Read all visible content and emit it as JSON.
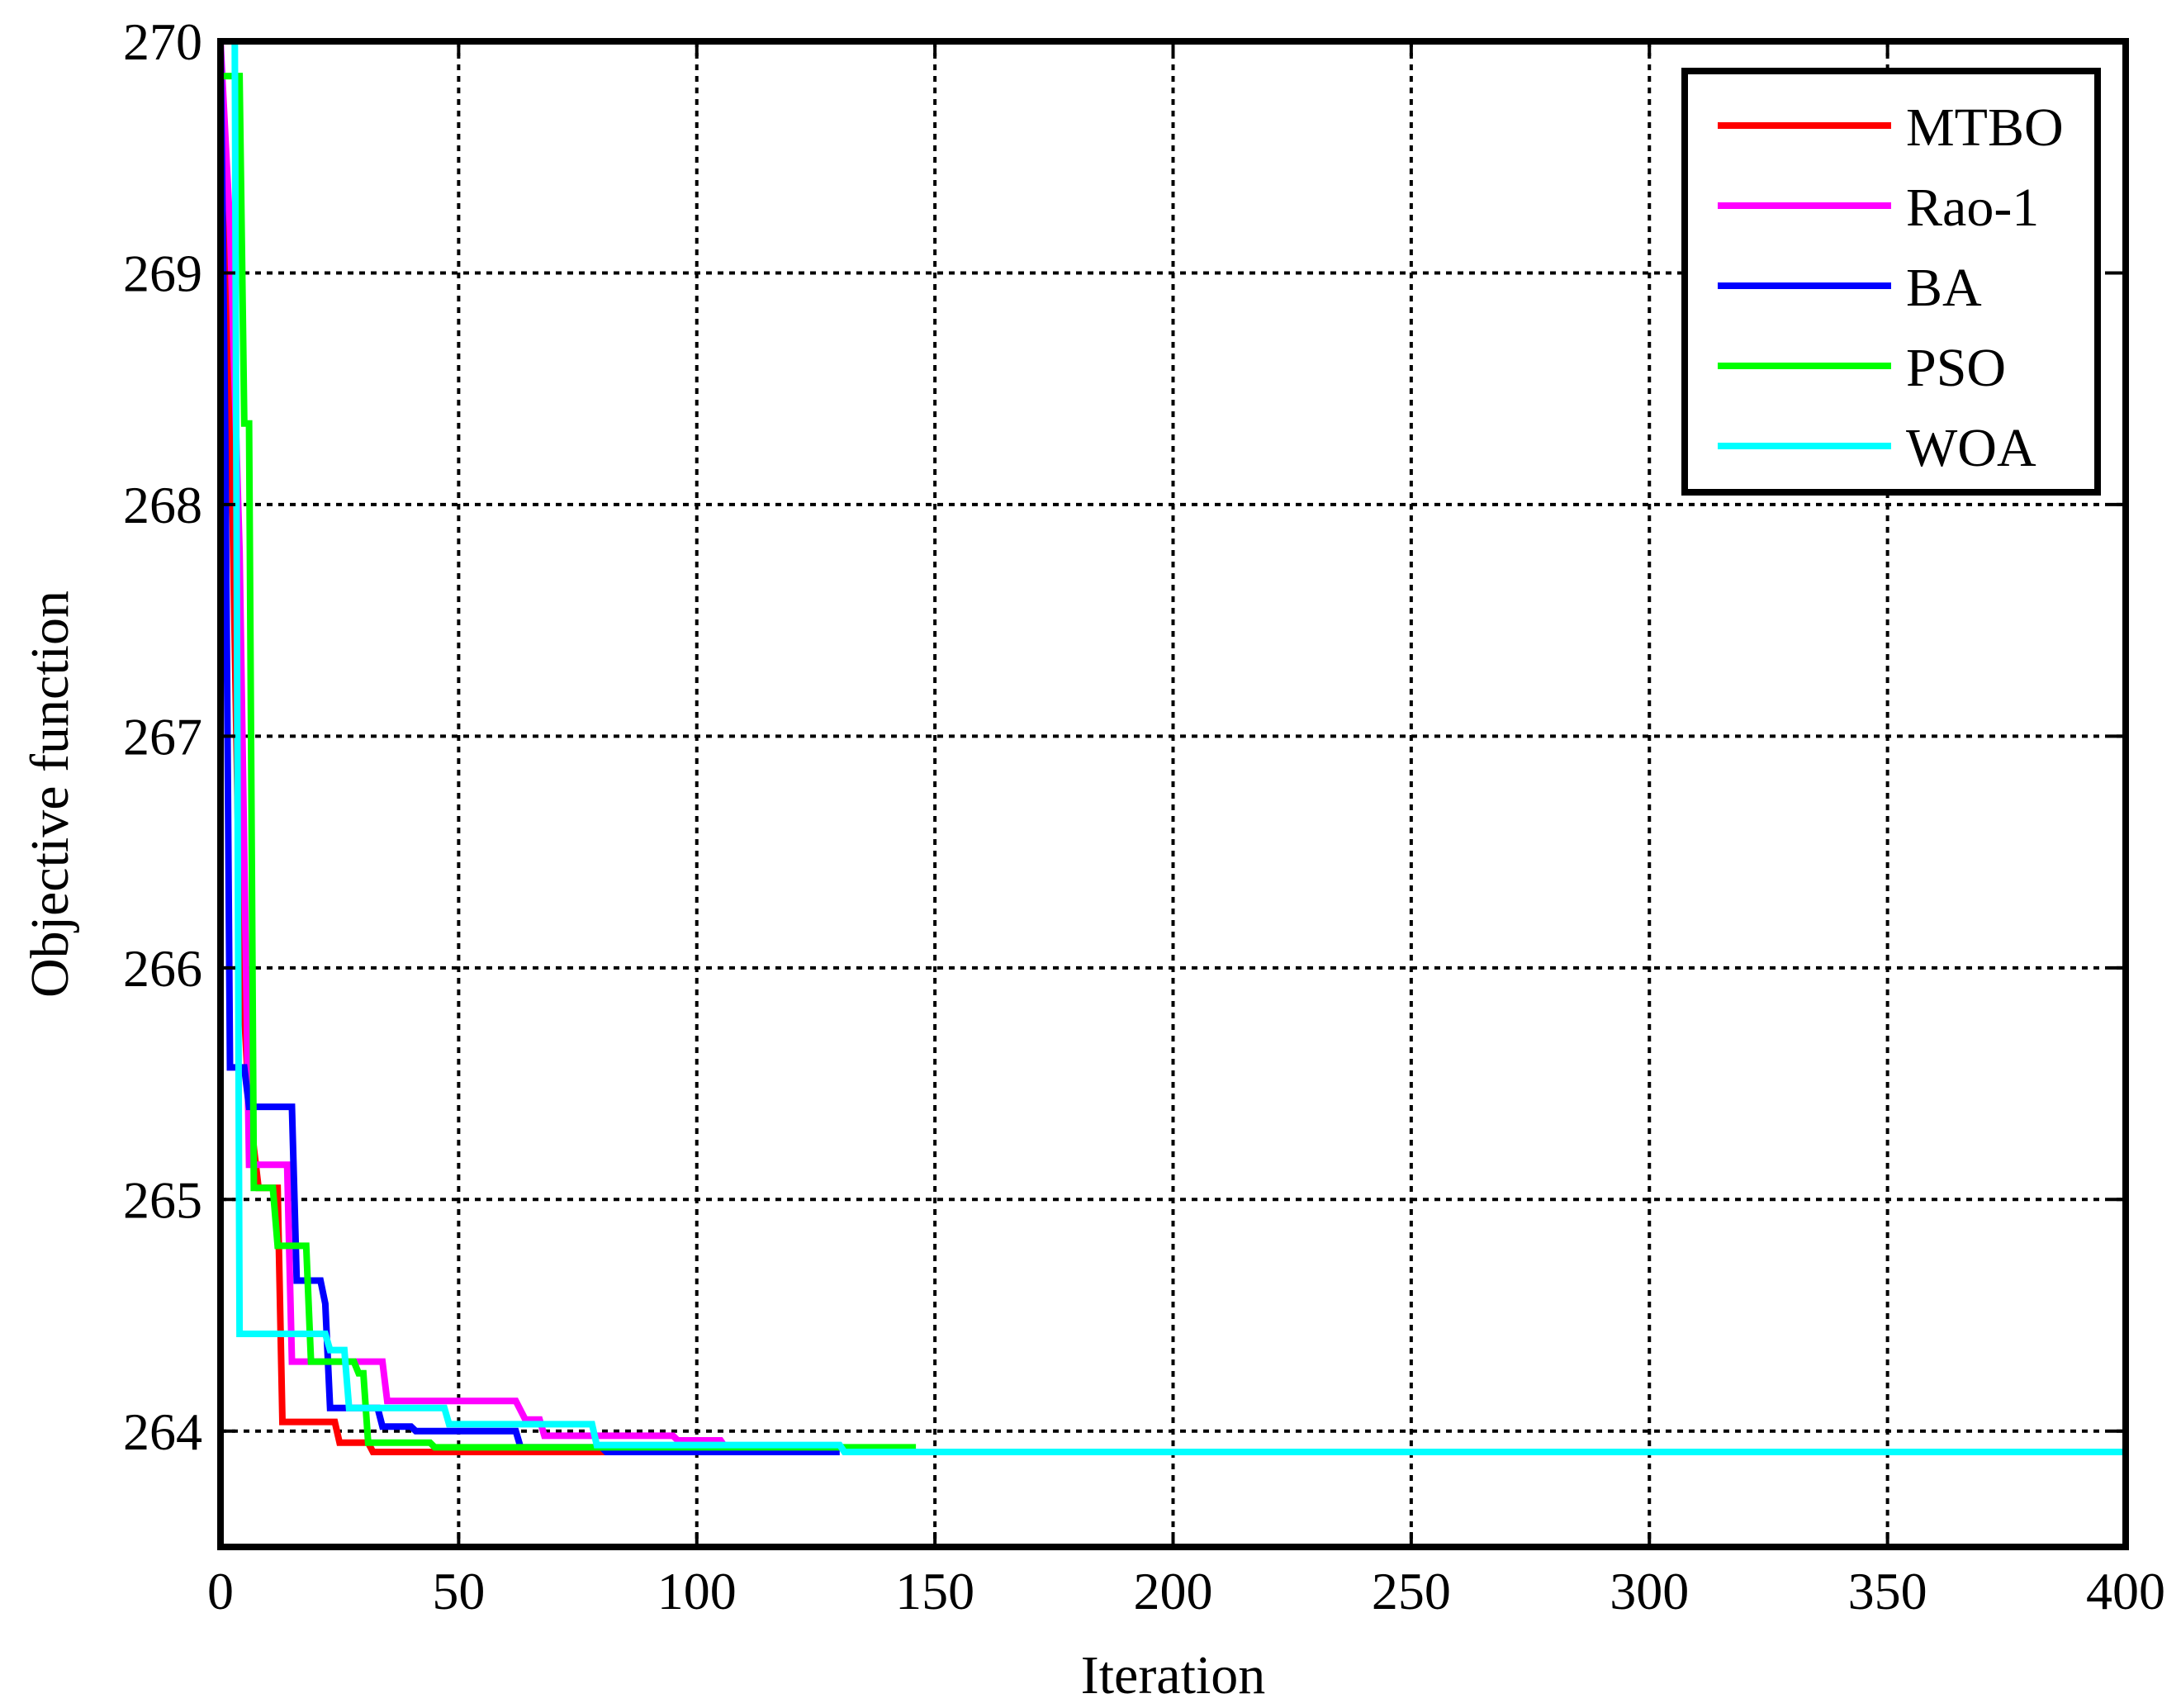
{
  "chart_data": {
    "type": "line",
    "title": "",
    "xlabel": "Iteration",
    "ylabel": "Objective function",
    "xlim": [
      0,
      400
    ],
    "ylim": [
      263.5,
      270
    ],
    "xticks": [
      0,
      50,
      100,
      150,
      200,
      250,
      300,
      350,
      400
    ],
    "yticks": [
      264,
      265,
      266,
      267,
      268,
      269,
      270
    ],
    "grid": true,
    "legend_position": "top-right",
    "series": [
      {
        "name": "MTBO",
        "color": "#ff0000",
        "points": [
          [
            0,
            270
          ],
          [
            2,
            268.6
          ],
          [
            4,
            266.2
          ],
          [
            6,
            265.4
          ],
          [
            8,
            265.05
          ],
          [
            12,
            265.05
          ],
          [
            13,
            264.04
          ],
          [
            24,
            264.04
          ],
          [
            25,
            263.95
          ],
          [
            31,
            263.95
          ],
          [
            32,
            263.91
          ],
          [
            120,
            263.91
          ]
        ]
      },
      {
        "name": "Rao-1",
        "color": "#ff00ff",
        "points": [
          [
            0,
            270
          ],
          [
            2,
            269.2
          ],
          [
            4,
            267.8
          ],
          [
            6,
            265.15
          ],
          [
            14,
            265.15
          ],
          [
            15,
            264.3
          ],
          [
            34,
            264.3
          ],
          [
            35,
            264.13
          ],
          [
            62,
            264.13
          ],
          [
            64,
            264.05
          ],
          [
            67,
            264.05
          ],
          [
            68,
            263.98
          ],
          [
            95,
            263.98
          ],
          [
            96,
            263.96
          ],
          [
            105,
            263.96
          ],
          [
            106,
            263.93
          ],
          [
            129,
            263.93
          ]
        ]
      },
      {
        "name": "BA",
        "color": "#0000ff",
        "points": [
          [
            0,
            270
          ],
          [
            1,
            268.3
          ],
          [
            2,
            265.57
          ],
          [
            5,
            265.57
          ],
          [
            6,
            265.4
          ],
          [
            15,
            265.4
          ],
          [
            16,
            264.65
          ],
          [
            21,
            264.65
          ],
          [
            22,
            264.55
          ],
          [
            23,
            264.1
          ],
          [
            33,
            264.1
          ],
          [
            34,
            264.02
          ],
          [
            40,
            264.02
          ],
          [
            41,
            264.0
          ],
          [
            62,
            264.0
          ],
          [
            63,
            263.93
          ],
          [
            80,
            263.93
          ],
          [
            81,
            263.91
          ],
          [
            130,
            263.91
          ]
        ]
      },
      {
        "name": "PSO",
        "color": "#00ff00",
        "points": [
          [
            0,
            269.85
          ],
          [
            4,
            269.85
          ],
          [
            5,
            268.35
          ],
          [
            6,
            268.35
          ],
          [
            7,
            265.05
          ],
          [
            11,
            265.05
          ],
          [
            12,
            264.8
          ],
          [
            18,
            264.8
          ],
          [
            19,
            264.3
          ],
          [
            28,
            264.3
          ],
          [
            29,
            264.25
          ],
          [
            30,
            264.25
          ],
          [
            31,
            263.95
          ],
          [
            44,
            263.95
          ],
          [
            45,
            263.93
          ],
          [
            146,
            263.93
          ]
        ]
      },
      {
        "name": "WOA",
        "color": "#00ffff",
        "points": [
          [
            0,
            270
          ],
          [
            3,
            270
          ],
          [
            4,
            264.42
          ],
          [
            22,
            264.42
          ],
          [
            23,
            264.35
          ],
          [
            26,
            264.35
          ],
          [
            27,
            264.1
          ],
          [
            47,
            264.1
          ],
          [
            48,
            264.03
          ],
          [
            78,
            264.03
          ],
          [
            79,
            263.94
          ],
          [
            130,
            263.94
          ],
          [
            131,
            263.91
          ],
          [
            400,
            263.91
          ]
        ]
      }
    ]
  }
}
